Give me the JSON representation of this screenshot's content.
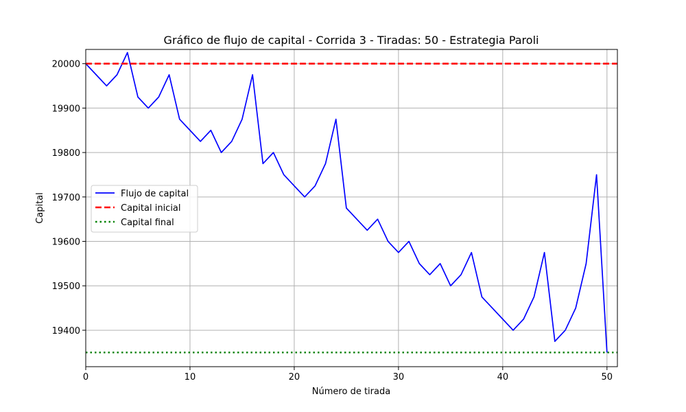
{
  "chart_data": {
    "type": "line",
    "title": "Gráfico de flujo de capital - Corrida 3 - Tiradas: 50 - Estrategia Paroli",
    "xlabel": "Número de tirada",
    "ylabel": "Capital",
    "xlim": [
      0,
      51
    ],
    "ylim": [
      19318,
      20032
    ],
    "xticks": [
      0,
      10,
      20,
      30,
      40,
      50
    ],
    "yticks": [
      19400,
      19500,
      19600,
      19700,
      19800,
      19900,
      20000
    ],
    "grid": true,
    "legend_position": "center-left",
    "series": [
      {
        "name": "Flujo de capital",
        "color": "#0000ff",
        "style": "solid",
        "x": [
          0,
          1,
          2,
          3,
          4,
          5,
          6,
          7,
          8,
          9,
          10,
          11,
          12,
          13,
          14,
          15,
          16,
          17,
          18,
          19,
          20,
          21,
          22,
          23,
          24,
          25,
          26,
          27,
          28,
          29,
          30,
          31,
          32,
          33,
          34,
          35,
          36,
          37,
          38,
          39,
          40,
          41,
          42,
          43,
          44,
          45,
          46,
          47,
          48,
          49,
          50
        ],
        "values": [
          20000,
          19975,
          19950,
          19975,
          20025,
          19925,
          19900,
          19925,
          19975,
          19875,
          19850,
          19825,
          19850,
          19800,
          19825,
          19875,
          19975,
          19775,
          19800,
          19750,
          19725,
          19700,
          19725,
          19775,
          19875,
          19675,
          19650,
          19625,
          19650,
          19600,
          19575,
          19600,
          19550,
          19525,
          19550,
          19500,
          19525,
          19575,
          19475,
          19450,
          19425,
          19400,
          19425,
          19475,
          19575,
          19375,
          19400,
          19450,
          19550,
          19750,
          19350
        ]
      },
      {
        "name": "Capital inicial",
        "color": "#ff0000",
        "style": "dashed",
        "value": 20000
      },
      {
        "name": "Capital final",
        "color": "#008000",
        "style": "dotted",
        "value": 19350
      }
    ]
  }
}
